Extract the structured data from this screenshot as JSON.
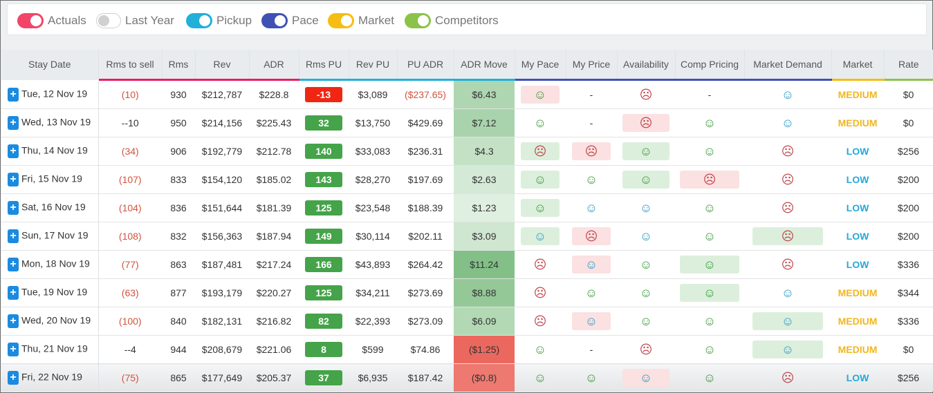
{
  "toggles": [
    {
      "label": "Actuals",
      "on": true,
      "color": "#f2456a"
    },
    {
      "label": "Last Year",
      "on": false,
      "color": "#cccccc"
    },
    {
      "label": "Pickup",
      "on": true,
      "color": "#20b0d8"
    },
    {
      "label": "Pace",
      "on": true,
      "color": "#3f51b5"
    },
    {
      "label": "Market",
      "on": true,
      "color": "#f6bd12"
    },
    {
      "label": "Competitors",
      "on": true,
      "color": "#8bc34a"
    }
  ],
  "columns": [
    {
      "label": "Stay Date",
      "underline": ""
    },
    {
      "label": "Rms to sell",
      "underline": "#e91e63"
    },
    {
      "label": "Rms",
      "underline": "#e91e63"
    },
    {
      "label": "Rev",
      "underline": "#e91e63"
    },
    {
      "label": "ADR",
      "underline": "#e91e63"
    },
    {
      "label": "Rms PU",
      "underline": "#20b0d8"
    },
    {
      "label": "Rev PU",
      "underline": "#20b0d8"
    },
    {
      "label": "PU ADR",
      "underline": "#20b0d8"
    },
    {
      "label": "ADR Move",
      "underline": "#20b0d8"
    },
    {
      "label": "My Pace",
      "underline": "#3f51b5"
    },
    {
      "label": "My Price",
      "underline": "#3f51b5"
    },
    {
      "label": "Availability",
      "underline": "#3f51b5"
    },
    {
      "label": "Comp Pricing",
      "underline": "#3f51b5"
    },
    {
      "label": "Market Demand",
      "underline": "#3f51b5"
    },
    {
      "label": "Market",
      "underline": "#f6bd12"
    },
    {
      "label": "Rate",
      "underline": "#8bc34a"
    }
  ],
  "rows": [
    {
      "date": "Tue, 12 Nov 19",
      "rms_to_sell": "(10)",
      "rms": "930",
      "rev": "$212,787",
      "adr": "$228.8",
      "rms_pu": "-13",
      "rev_pu": "$3,089",
      "pu_adr": "($237.65)",
      "adr_move": "$6.43",
      "adr_move_level": 0.55,
      "my_pace": "happy-red-bg",
      "my_price": "-",
      "availability": "sad",
      "comp_pricing": "-",
      "market_demand": "neutral",
      "market": "MEDIUM",
      "rate": "$0"
    },
    {
      "date": "Wed, 13 Nov 19",
      "rms_to_sell": "--10",
      "rms": "950",
      "rev": "$214,156",
      "adr": "$225.43",
      "rms_pu": "32",
      "rev_pu": "$13,750",
      "pu_adr": "$429.69",
      "adr_move": "$7.12",
      "adr_move_level": 0.6,
      "my_pace": "happy",
      "my_price": "-",
      "availability": "sad-red-bg",
      "comp_pricing": "happy",
      "market_demand": "neutral",
      "market": "MEDIUM",
      "rate": "$0"
    },
    {
      "date": "Thu, 14 Nov 19",
      "rms_to_sell": "(34)",
      "rms": "906",
      "rev": "$192,779",
      "adr": "$212.78",
      "rms_pu": "140",
      "rev_pu": "$33,083",
      "pu_adr": "$236.31",
      "adr_move": "$4.3",
      "adr_move_level": 0.35,
      "my_pace": "sad-green-bg",
      "my_price": "sad-red-bg",
      "availability": "happy-green-bg",
      "comp_pricing": "happy",
      "market_demand": "sad",
      "market": "LOW",
      "rate": "$256"
    },
    {
      "date": "Fri, 15 Nov 19",
      "rms_to_sell": "(107)",
      "rms": "833",
      "rev": "$154,120",
      "adr": "$185.02",
      "rms_pu": "143",
      "rev_pu": "$28,270",
      "pu_adr": "$197.69",
      "adr_move": "$2.63",
      "adr_move_level": 0.2,
      "my_pace": "happy-green-bg",
      "my_price": "happy",
      "availability": "happy-green-bg",
      "comp_pricing": "sad-red-bg",
      "market_demand": "sad",
      "market": "LOW",
      "rate": "$200"
    },
    {
      "date": "Sat, 16 Nov 19",
      "rms_to_sell": "(104)",
      "rms": "836",
      "rev": "$151,644",
      "adr": "$181.39",
      "rms_pu": "125",
      "rev_pu": "$23,548",
      "pu_adr": "$188.39",
      "adr_move": "$1.23",
      "adr_move_level": 0.1,
      "my_pace": "happy-green-bg",
      "my_price": "neutral",
      "availability": "neutral",
      "comp_pricing": "happy",
      "market_demand": "sad",
      "market": "LOW",
      "rate": "$200"
    },
    {
      "date": "Sun, 17 Nov 19",
      "rms_to_sell": "(108)",
      "rms": "832",
      "rev": "$156,363",
      "adr": "$187.94",
      "rms_pu": "149",
      "rev_pu": "$30,114",
      "pu_adr": "$202.11",
      "adr_move": "$3.09",
      "adr_move_level": 0.25,
      "my_pace": "neutral-green-bg",
      "my_price": "sad-red-bg",
      "availability": "neutral",
      "comp_pricing": "happy",
      "market_demand": "sad-green-bg",
      "market": "LOW",
      "rate": "$200"
    },
    {
      "date": "Mon, 18 Nov 19",
      "rms_to_sell": "(77)",
      "rms": "863",
      "rev": "$187,481",
      "adr": "$217.24",
      "rms_pu": "166",
      "rev_pu": "$43,893",
      "pu_adr": "$264.42",
      "adr_move": "$11.24",
      "adr_move_level": 0.95,
      "my_pace": "sad",
      "my_price": "neutral-red-bg",
      "availability": "happy",
      "comp_pricing": "happy-green-bg",
      "market_demand": "sad",
      "market": "LOW",
      "rate": "$336"
    },
    {
      "date": "Tue, 19 Nov 19",
      "rms_to_sell": "(63)",
      "rms": "877",
      "rev": "$193,179",
      "adr": "$220.27",
      "rms_pu": "125",
      "rev_pu": "$34,211",
      "pu_adr": "$273.69",
      "adr_move": "$8.88",
      "adr_move_level": 0.8,
      "my_pace": "sad",
      "my_price": "happy",
      "availability": "happy",
      "comp_pricing": "happy-green-bg",
      "market_demand": "neutral",
      "market": "MEDIUM",
      "rate": "$344"
    },
    {
      "date": "Wed, 20 Nov 19",
      "rms_to_sell": "(100)",
      "rms": "840",
      "rev": "$182,131",
      "adr": "$216.82",
      "rms_pu": "82",
      "rev_pu": "$22,393",
      "pu_adr": "$273.09",
      "adr_move": "$6.09",
      "adr_move_level": 0.52,
      "my_pace": "sad",
      "my_price": "neutral-red-bg",
      "availability": "happy",
      "comp_pricing": "happy",
      "market_demand": "neutral-green-bg",
      "market": "MEDIUM",
      "rate": "$336"
    },
    {
      "date": "Thu, 21 Nov 19",
      "rms_to_sell": "--4",
      "rms": "944",
      "rev": "$208,679",
      "adr": "$221.06",
      "rms_pu": "8",
      "rev_pu": "$599",
      "pu_adr": "$74.86",
      "adr_move": "($1.25)",
      "adr_move_level": -0.9,
      "my_pace": "happy",
      "my_price": "-",
      "availability": "sad",
      "comp_pricing": "happy",
      "market_demand": "neutral-green-bg",
      "market": "MEDIUM",
      "rate": "$0"
    },
    {
      "date": "Fri, 22 Nov 19",
      "rms_to_sell": "(75)",
      "rms": "865",
      "rev": "$177,649",
      "adr": "$205.37",
      "rms_pu": "37",
      "rev_pu": "$6,935",
      "pu_adr": "$187.42",
      "adr_move": "($0.8)",
      "adr_move_level": -0.7,
      "my_pace": "happy",
      "my_price": "happy",
      "availability": "neutral-red-bg",
      "comp_pricing": "happy",
      "market_demand": "sad",
      "market": "LOW",
      "rate": "$256"
    }
  ]
}
